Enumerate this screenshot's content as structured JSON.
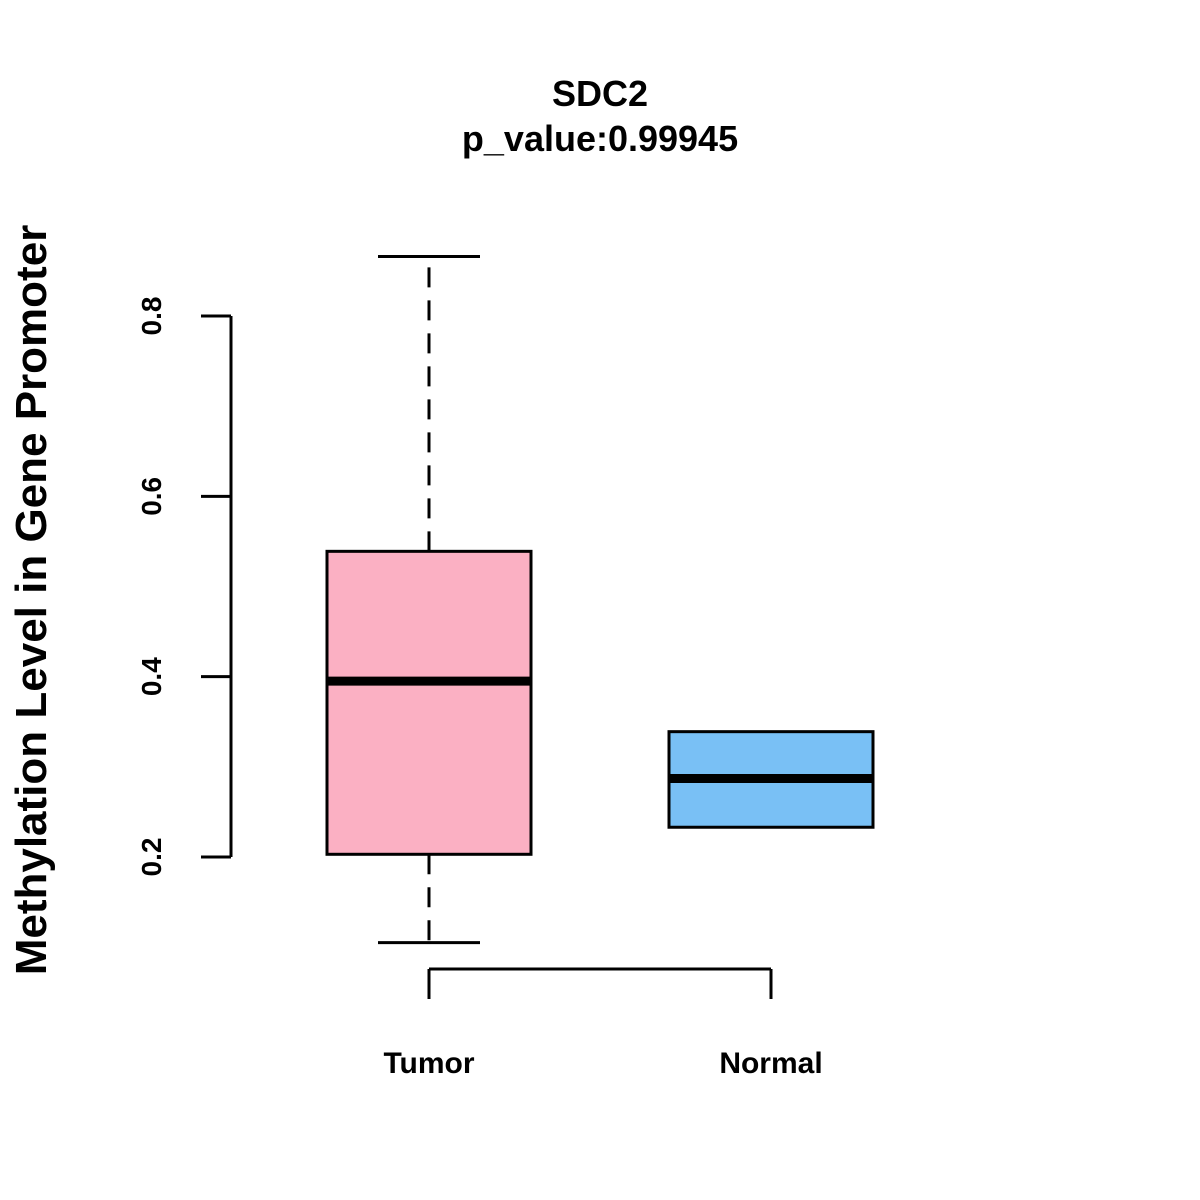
{
  "chart_data": {
    "type": "boxplot",
    "title": "SDC2",
    "subtitle": "p_value:0.99945",
    "xlabel": "",
    "ylabel": "Methylation Level in Gene Promoter",
    "ylim": [
      0.2,
      0.8
    ],
    "yticks": [
      0.2,
      0.4,
      0.6,
      0.8
    ],
    "ytick_labels": [
      "0.2",
      "0.4",
      "0.6",
      "0.8"
    ],
    "categories": [
      "Tumor",
      "Normal"
    ],
    "boxes": [
      {
        "name": "Tumor",
        "color": "#FBB0C3",
        "whisker_low": 0.105,
        "q1": 0.203,
        "median": 0.395,
        "q3": 0.539,
        "whisker_high": 0.866
      },
      {
        "name": "Normal",
        "color": "#79C0F5",
        "whisker_low": 0.233,
        "q1": 0.233,
        "median": 0.287,
        "q3": 0.339,
        "whisker_high": 0.339
      }
    ]
  }
}
